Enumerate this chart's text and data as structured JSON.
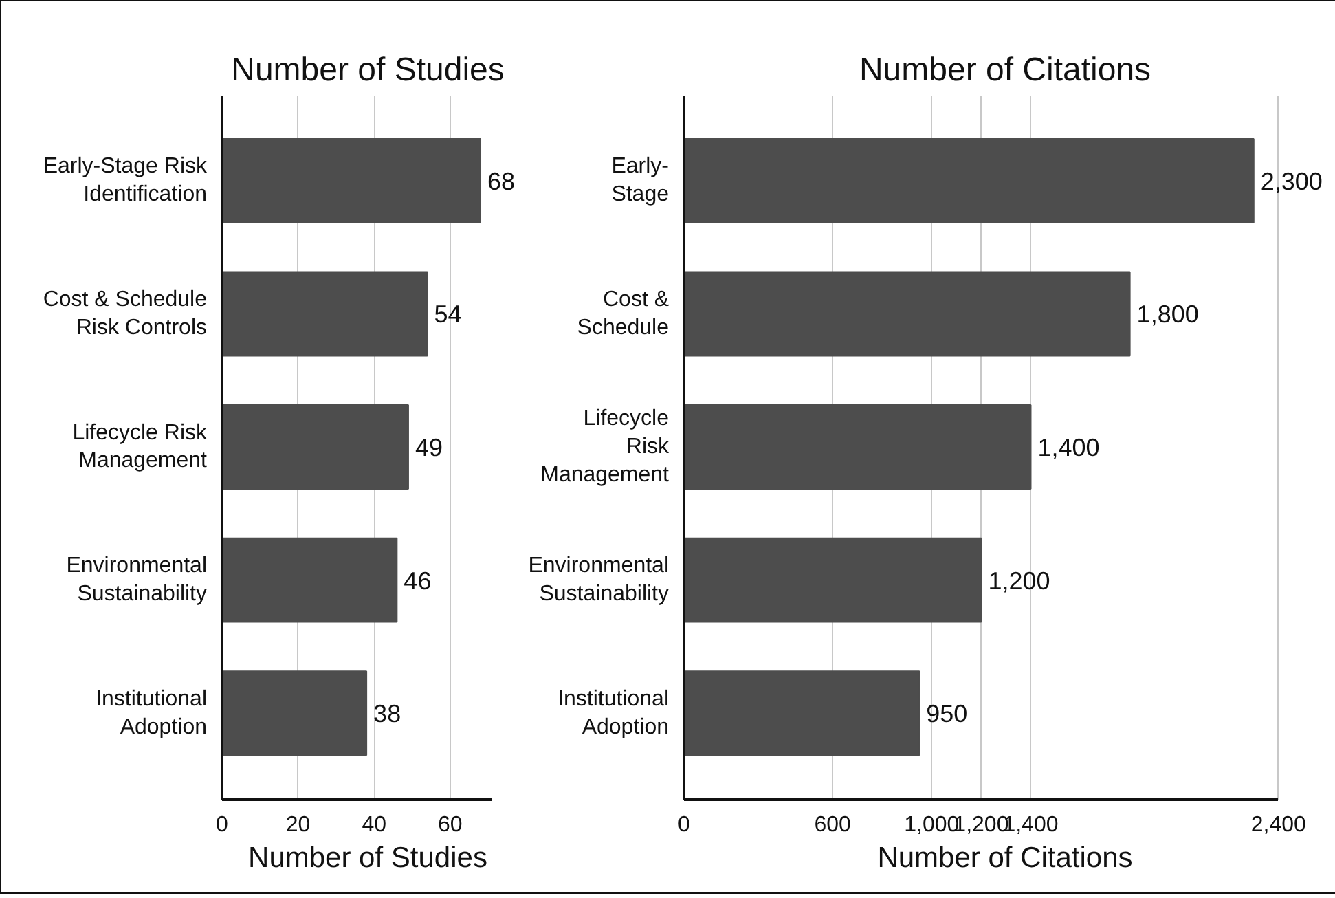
{
  "chart_data": [
    {
      "type": "bar",
      "orientation": "horizontal",
      "title": "Number of Studies",
      "xlabel": "Number of Studies",
      "categories": [
        "Early-Stage Risk\nIdentification",
        "Cost & Schedule\nRisk Controls",
        "Lifecycle Risk\nManagement",
        "Environmental\nSustainability",
        "Institutional\nAdoption"
      ],
      "values": [
        68,
        54,
        49,
        46,
        38
      ],
      "color": "#4d4d4d",
      "data_labels": true,
      "xlim": [
        0,
        71
      ],
      "xticks": [
        0,
        20,
        40,
        60
      ],
      "grid": "x"
    },
    {
      "type": "bar",
      "orientation": "horizontal",
      "title": "Number of Citations",
      "xlabel": "Number of Citations",
      "categories": [
        "Early-\nStage",
        "Cost &\nSchedule",
        "Lifecycle\nRisk\nManagement",
        "Environmental\nSustainability",
        "Institutional\nAdoption"
      ],
      "values": [
        2300,
        1800,
        1400,
        1200,
        950
      ],
      "color": "#4d4d4d",
      "value_labels": [
        "2,300",
        "1,800",
        "1,400",
        "1,200",
        "950"
      ],
      "xlim": [
        0,
        2400
      ],
      "xticks": [
        0,
        600,
        {
          "value": 1000,
          "label": "1,000"
        },
        {
          "value": 1200,
          "label": "1,200"
        },
        {
          "value": 1400,
          "label": "1,400"
        },
        {
          "value": 2400,
          "label": "2,400"
        }
      ],
      "grid": "x"
    }
  ]
}
